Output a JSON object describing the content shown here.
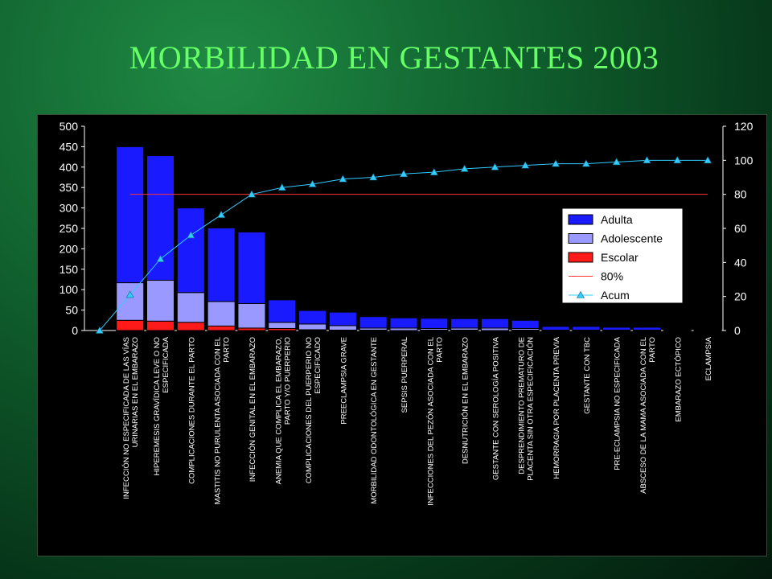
{
  "slide": {
    "title": "MORBILIDAD EN GESTANTES 2003"
  },
  "colors": {
    "background": "#0f5a2a",
    "title": "#66ff66",
    "axis_text": "#ffffff",
    "adulta": "#1a1aff",
    "adolescente": "#9999ff",
    "escolar": "#ff1a1a",
    "line80": "#ff3333",
    "acum": "#33ccff"
  },
  "chart_data": {
    "type": "bar",
    "stacked": true,
    "categories": [
      "",
      "INFECCIÓN NO ESPECIFICADA DE LAS VÍAS URINARIAS EN EL EMBARAZO",
      "HIPEREMESIS GRAVÍDICA LEVE O NO ESPECIFICADA",
      "COMPLICACIONES DURANTE EL PARTO",
      "MASTITIS NO PURULENTA ASOCIADA CON EL PARTO",
      "INFECCIÓN GENITAL EN EL EMBARAZO",
      "ANEMIA QUE COMPLICA EL EMBARAZO, PARTO Y/O PUERPERIO",
      "COMPLICACIONES DEL PUERPERIO NO ESPECIFICADO",
      "PREECLAMPSIA GRAVE",
      "MORBILIDAD ODONTOLÓGICA EN GESTANTE",
      "SEPSIS PUERPERAL",
      "INFECCIONES DEL PEZÓN ASOCIADA CON EL PARTO",
      "DESNUTRICIÓN EN EL EMBARAZO",
      "GESTANTE CON SEROLOGÍA POSITIVA",
      "DESPRENDIMIENTO PREMATURO DE PLACENTA SIN OTRA ESPECIFICACIÓN",
      "HEMORRAGIA POR PLACENTA PREVIA",
      "GESTANTE CON TBC",
      "PRE-ECLAMPSIA NO ESPECIFICADA",
      "ABSCESO DE LA MAMA ASOCIADA CON EL PARTO",
      "EMBARAZO ECTÓPICO",
      "ECLAMPSIA"
    ],
    "category_label_lines": [
      [],
      [
        "INFECCIÓN NO ESPECIFICADA DE LAS VÍAS",
        "URINARIAS EN EL EMBARAZO"
      ],
      [
        "HIPEREMESIS GRAVÍDICA LEVE O NO",
        "ESPECIFICADA"
      ],
      [
        "COMPLICACIONES DURANTE EL PARTO"
      ],
      [
        "MASTITIS NO PURULENTA ASOCIADA CON EL",
        "PARTO"
      ],
      [
        "INFECCIÓN GENITAL EN EL EMBARAZO"
      ],
      [
        "ANEMIA QUE COMPLICA EL EMBARAZO,",
        "PARTO Y/O PUERPERIO"
      ],
      [
        "COMPLICACIONES DEL PUERPERIO NO",
        "ESPECIFICADO"
      ],
      [
        "PREECLAMPSIA GRAVE"
      ],
      [
        "MORBILIDAD ODONTOLÓGICA EN GESTANTE"
      ],
      [
        "SEPSIS PUERPERAL"
      ],
      [
        "INFECCIONES DEL PEZÓN ASOCIADA CON EL",
        "PARTO"
      ],
      [
        "DESNUTRICIÓN EN EL EMBARAZO"
      ],
      [
        "GESTANTE CON SEROLOGÍA POSITIVA"
      ],
      [
        "DESPRENDIMIENTO PREMATURO DE",
        "PLACENTA SIN OTRA ESPECIFICACIÓN"
      ],
      [
        "HEMORRAGIA POR PLACENTA PREVIA"
      ],
      [
        "GESTANTE CON TBC"
      ],
      [
        "PRE-ECLAMPSIA NO ESPECIFICADA"
      ],
      [
        "ABSCESO DE LA MAMA ASOCIADA CON EL",
        "PARTO"
      ],
      [
        "EMBARAZO ECTÓPICO"
      ],
      [
        "ECLAMPSIA"
      ]
    ],
    "series": [
      {
        "name": "Adulta",
        "kind": "bar",
        "values": [
          0,
          333,
          305,
          207,
          180,
          175,
          55,
          33,
          33,
          28,
          25,
          25,
          23,
          23,
          20,
          9,
          9,
          7,
          7,
          2,
          2
        ]
      },
      {
        "name": "Adolescente",
        "kind": "bar",
        "values": [
          0,
          92,
          100,
          73,
          60,
          60,
          15,
          14,
          11,
          5,
          6,
          4,
          5,
          6,
          4,
          1,
          1,
          1,
          1,
          0,
          0
        ]
      },
      {
        "name": "Escolar",
        "kind": "bar",
        "values": [
          0,
          25,
          23,
          20,
          11,
          6,
          5,
          2,
          1,
          1,
          0,
          1,
          1,
          0,
          1,
          0,
          0,
          0,
          0,
          0,
          0
        ]
      },
      {
        "name": "80%",
        "kind": "line",
        "axis": "right",
        "x_start": 1,
        "x_end": 20,
        "value": 80
      },
      {
        "name": "Acum",
        "kind": "line",
        "axis": "right",
        "values": [
          0,
          21,
          42,
          56,
          68,
          80,
          84,
          86,
          89,
          90,
          92,
          93,
          95,
          96,
          97,
          98,
          98,
          99,
          100,
          100,
          100
        ]
      }
    ],
    "ylim": [
      0,
      500
    ],
    "yticks": [
      "500",
      "450",
      "400",
      "350",
      "300",
      "250",
      "200",
      "150",
      "100",
      "50",
      "0"
    ],
    "y2lim": [
      0,
      120
    ],
    "y2ticks": [
      "120",
      "100",
      "80",
      "60",
      "40",
      "20",
      "0"
    ],
    "grid": false,
    "legend": "right",
    "xlabel": "",
    "ylabel": ""
  }
}
